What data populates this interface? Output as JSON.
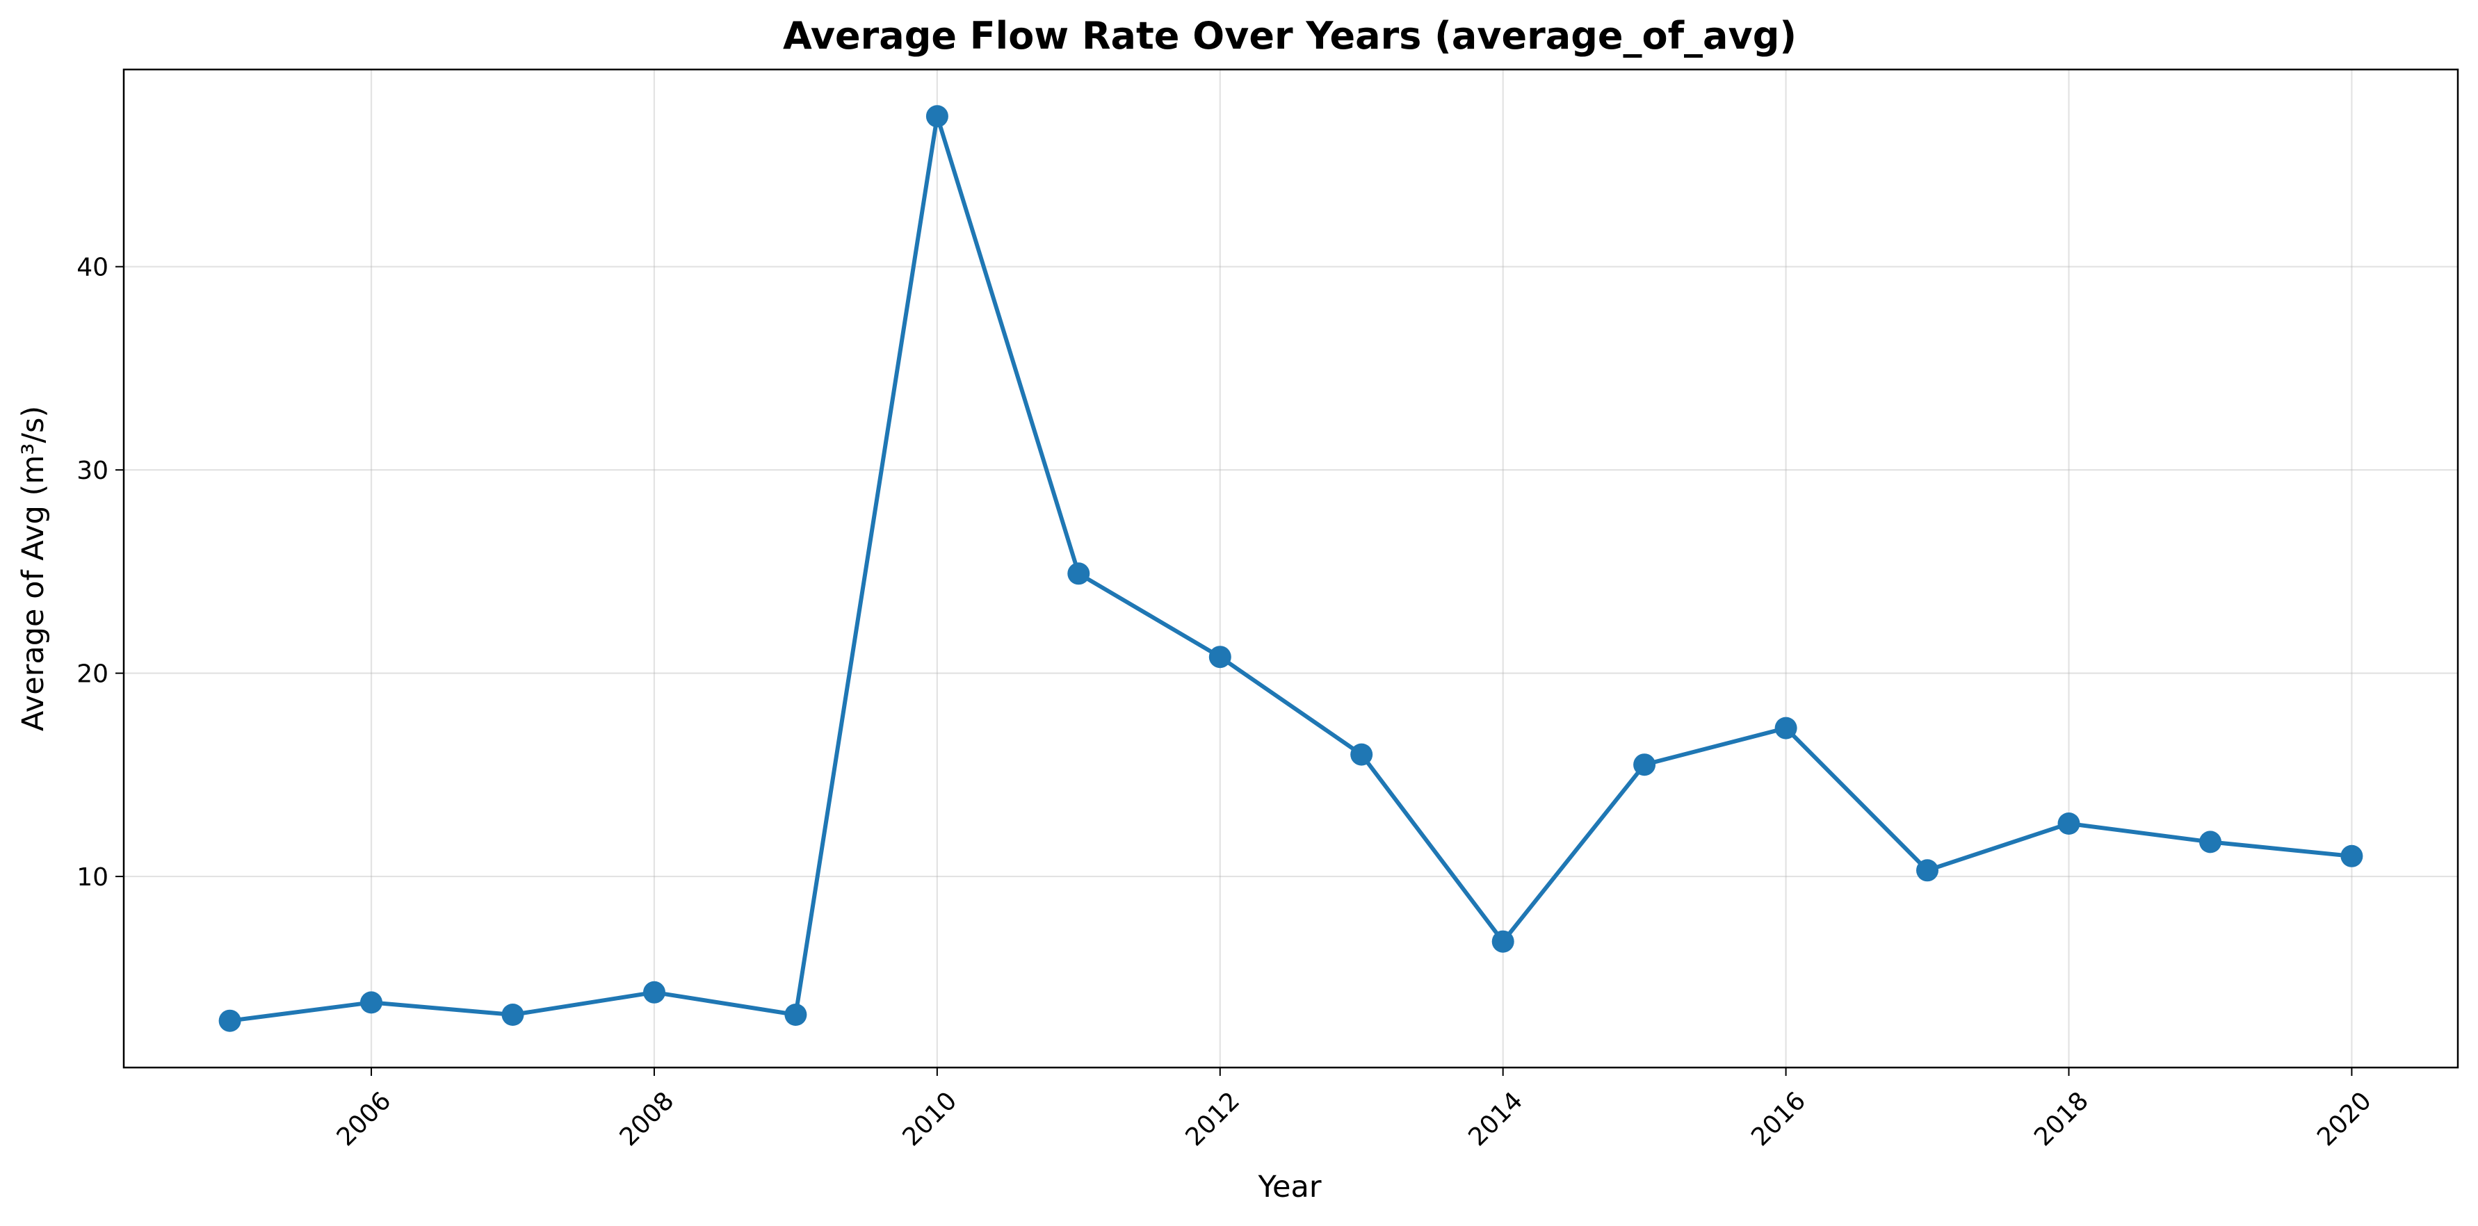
{
  "chart_data": {
    "type": "line",
    "title": "Average Flow Rate Over Years (average_of_avg)",
    "xlabel": "Year",
    "ylabel": "Average of Avg (m³/s)",
    "x": [
      2005,
      2006,
      2007,
      2008,
      2009,
      2010,
      2011,
      2012,
      2013,
      2014,
      2015,
      2016,
      2017,
      2018,
      2019,
      2020
    ],
    "series": [
      {
        "values": [
          2.9,
          3.8,
          3.2,
          4.3,
          3.2,
          47.4,
          24.9,
          20.8,
          16.0,
          6.8,
          15.5,
          17.3,
          10.3,
          12.6,
          11.7,
          11.0
        ]
      }
    ],
    "xlim": [
      2004.25,
      2020.75
    ],
    "ylim": [
      0.6,
      49.7
    ],
    "xticks": [
      "2006",
      "2008",
      "2010",
      "2012",
      "2014",
      "2016",
      "2018",
      "2020"
    ],
    "yticks": [
      "10",
      "20",
      "30",
      "40"
    ],
    "xtick_rotation": 45,
    "grid": true,
    "legend": "none",
    "colors": {
      "line": "#1f77b4",
      "marker": "#1f77b4"
    }
  }
}
